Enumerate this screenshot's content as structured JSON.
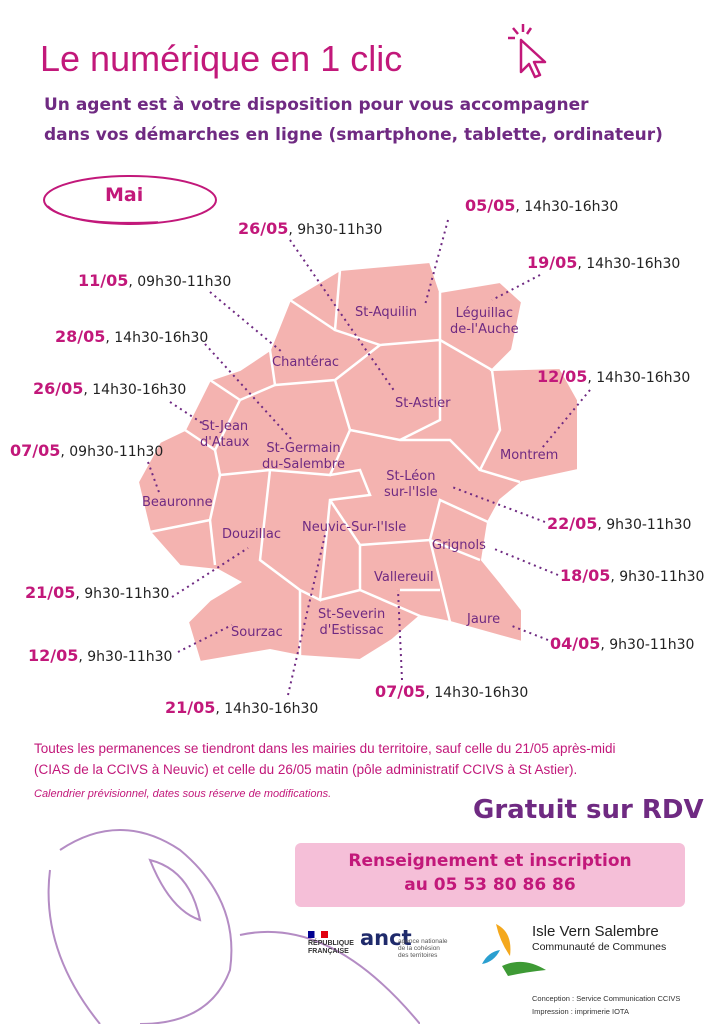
{
  "title": "Le numérique en 1 clic",
  "subtitle_lines": [
    "Un agent est à votre disposition pour vous accompagner",
    "dans vos démarches en ligne (smartphone, tablette, ordinateur)"
  ],
  "month": "Mai",
  "schedule": [
    {
      "date": "05/05",
      "time": ", 14h30-16h30",
      "commune": "St-Aquilin"
    },
    {
      "date": "26/05",
      "time": ", 9h30-11h30",
      "commune": "St-Astier"
    },
    {
      "date": "19/05",
      "time": ", 14h30-16h30",
      "commune": "Léguillac de-l'Auche"
    },
    {
      "date": "11/05",
      "time": ", 09h30-11h30",
      "commune": "Chantérac"
    },
    {
      "date": "28/05",
      "time": ", 14h30-16h30",
      "commune": "St-Germain du-Salembre"
    },
    {
      "date": "12/05",
      "time": ", 14h30-16h30",
      "commune": "Montrem"
    },
    {
      "date": "26/05",
      "time": ", 14h30-16h30",
      "commune": "St-Jean d'Ataux"
    },
    {
      "date": "07/05",
      "time": ", 09h30-11h30",
      "commune": "Beauronne"
    },
    {
      "date": "22/05",
      "time": ", 9h30-11h30",
      "commune": "St-Léon sur-l'Isle"
    },
    {
      "date": "18/05",
      "time": ", 9h30-11h30",
      "commune": "Grignols"
    },
    {
      "date": "21/05",
      "time": ", 9h30-11h30",
      "commune": "Douzillac"
    },
    {
      "date": "04/05",
      "time": ", 9h30-11h30",
      "commune": "Jaure"
    },
    {
      "date": "12/05",
      "time": ", 9h30-11h30",
      "commune": "Sourzac"
    },
    {
      "date": "07/05",
      "time": ", 14h30-16h30",
      "commune": "Vallereuil"
    },
    {
      "date": "21/05",
      "time": ", 14h30-16h30",
      "commune": "Neuvic-Sur-l'Isle"
    }
  ],
  "commune_labels": {
    "st_aquilin": "St-Aquilin",
    "leguillac_1": "Léguillac",
    "leguillac_2": "de-l'Auche",
    "chanterac": "Chantérac",
    "st_astier": "St-Astier",
    "montrem": "Montrem",
    "st_jean_1": "St-Jean",
    "st_jean_2": "d'Ataux",
    "st_germain_1": "St-Germain",
    "st_germain_2": "du-Salembre",
    "st_leon_1": "St-Léon",
    "st_leon_2": "sur-l'Isle",
    "beauronne": "Beauronne",
    "douzillac": "Douzillac",
    "neuvic": "Neuvic-Sur-l'Isle",
    "grignols": "Grignols",
    "vallereuil": "Vallereuil",
    "st_severin_1": "St-Severin",
    "st_severin_2": "d'Estissac",
    "sourzac": "Sourzac",
    "jaure": "Jaure"
  },
  "notes": {
    "line1": "Toutes les permanences se tiendront dans les mairies du territoire, sauf celle du 21/05 après-midi",
    "line2": "(CIAS de la CCIVS à Neuvic) et celle du 26/05 matin (pôle administratif CCIVS à St Astier).",
    "disclaimer": "Calendrier prévisionnel, dates sous réserve de modifications."
  },
  "gratuit": "Gratuit sur RDV",
  "contact": {
    "line1": "Renseignement et inscription",
    "line2": "au 05 53 80 86 86"
  },
  "logos": {
    "republique": [
      "RÉPUBLIQUE",
      "FRANÇAISE"
    ],
    "anct": "anct",
    "anct_text": [
      "agence nationale",
      "de la cohésion",
      "des territoires"
    ],
    "ivs_name": "Isle Vern Salembre",
    "ivs_sub": "Communauté de Communes"
  },
  "credits": {
    "conception": "Conception : Service Communication CCIVS",
    "impression": "Impression : imprimerie IOTA"
  },
  "colors": {
    "magenta": "#c2187a",
    "purple": "#6f2a82",
    "map": "#f4b3b0",
    "contact_bg": "#f5bfd8"
  },
  "icons": [
    "cursor-click-icon",
    "mouse-illustration"
  ]
}
